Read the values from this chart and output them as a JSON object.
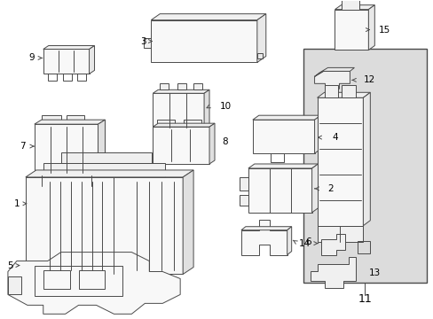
{
  "bg_color": "#ffffff",
  "line_color": "#4a4a4a",
  "text_color": "#000000",
  "box_bg": "#dedede",
  "fig_width": 4.89,
  "fig_height": 3.6,
  "dpi": 100
}
